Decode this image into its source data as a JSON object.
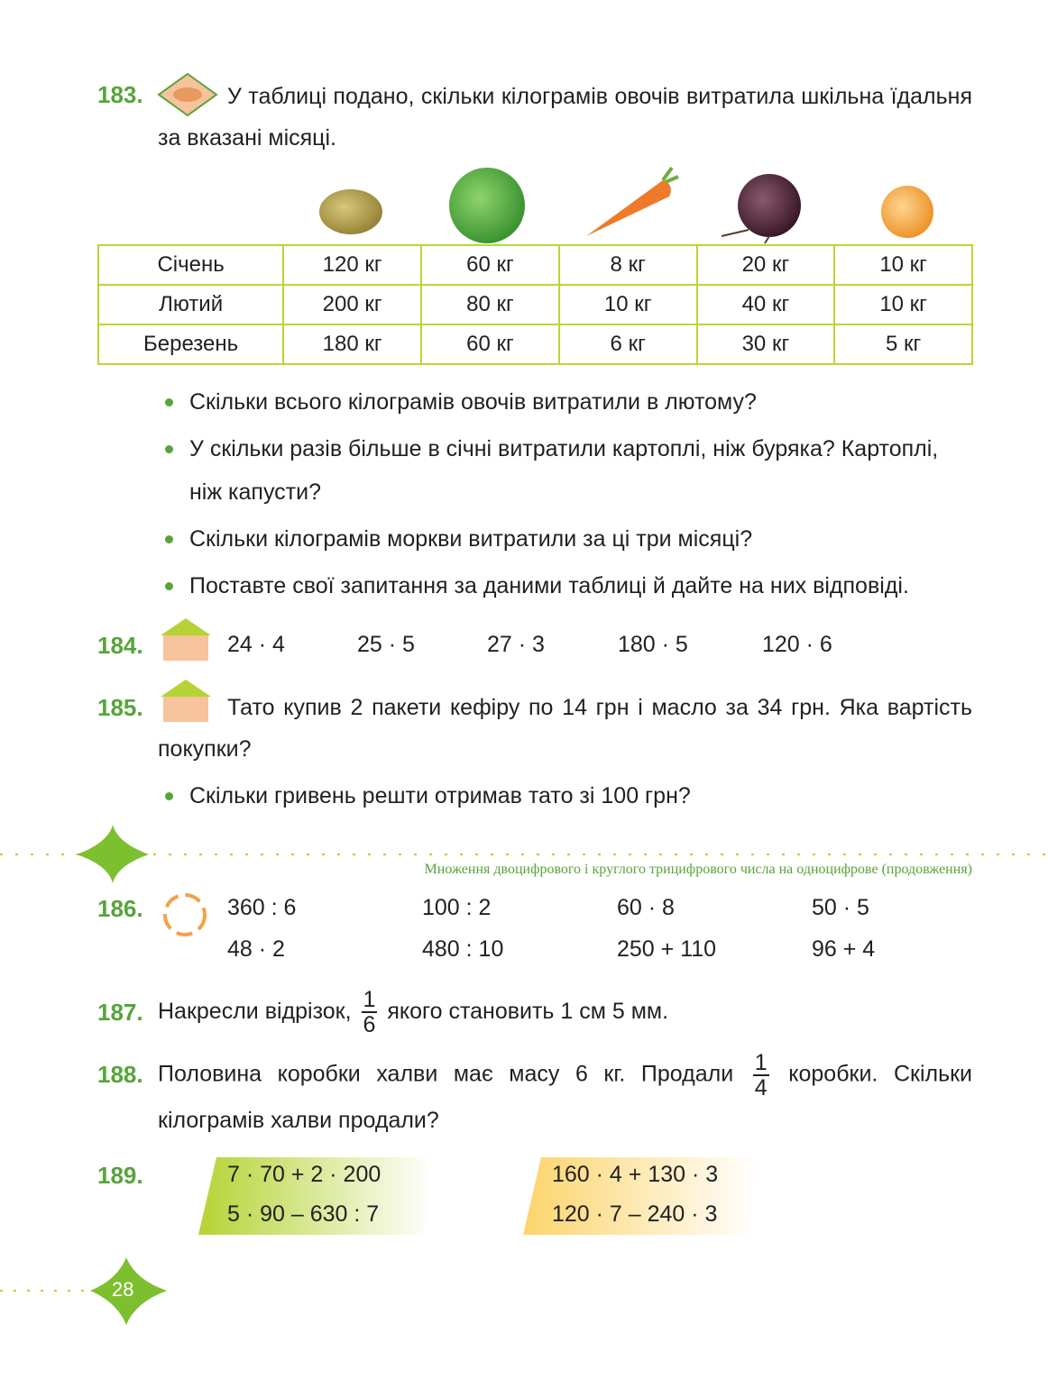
{
  "task183": {
    "number": "183.",
    "text": "У таблиці подано, скільки кілограмів овочів витратила шкільна їдальня за вказані місяці.",
    "table": {
      "rows": [
        [
          "Січень",
          "120 кг",
          "60 кг",
          "8 кг",
          "20 кг",
          "10 кг"
        ],
        [
          "Лютий",
          "200 кг",
          "80 кг",
          "10 кг",
          "40 кг",
          "10 кг"
        ],
        [
          "Березень",
          "180 кг",
          "60 кг",
          "6 кг",
          "30 кг",
          "5 кг"
        ]
      ]
    },
    "questions": [
      "Скільки всього кілограмів овочів витратили в лютому?",
      "У скільки разів більше в січні витратили картоплі, ніж буряка? Картоплі, ніж капусти?",
      "Скільки кілограмів моркви витратили за ці три місяці?",
      "Поставте свої запитання за даними таблиці й дайте на них відповіді."
    ]
  },
  "task184": {
    "number": "184.",
    "expressions": [
      "24 · 4",
      "25 · 5",
      "27 · 3",
      "180 · 5",
      "120 · 6"
    ]
  },
  "task185": {
    "number": "185.",
    "text": "Тато купив 2 пакети кефіру по 14 грн і масло за 34 грн. Яка вартість покупки?",
    "questions": [
      "Скільки гривень решти отримав тато зі 100 грн?"
    ]
  },
  "section_header": "Множення двоцифрового і круглого трицифрового числа на одноцифрове (продовження)",
  "task186": {
    "number": "186.",
    "rows": [
      [
        "360 : 6",
        "100 : 2",
        "60 · 8",
        "50 · 5"
      ],
      [
        "48 · 2",
        "480 : 10",
        "250 + 110",
        "96 + 4"
      ]
    ]
  },
  "task187": {
    "number": "187.",
    "text_before": "Накресли відрізок,",
    "fraction": {
      "numerator": "1",
      "denominator": "6"
    },
    "text_after": "якого становить 1 см 5 мм."
  },
  "task188": {
    "number": "188.",
    "text_before": "Половина коробки халви має масу 6 кг. Продали",
    "fraction": {
      "numerator": "1",
      "denominator": "4"
    },
    "text_after": "коробки. Скільки кілограмів халви продали?"
  },
  "task189": {
    "number": "189.",
    "left": [
      "7 · 70 + 2 · 200",
      "5 · 90 – 630 : 7"
    ],
    "right": [
      "160 · 4 + 130 · 3",
      "120 · 7 – 240 · 3"
    ]
  },
  "page_number": "28"
}
